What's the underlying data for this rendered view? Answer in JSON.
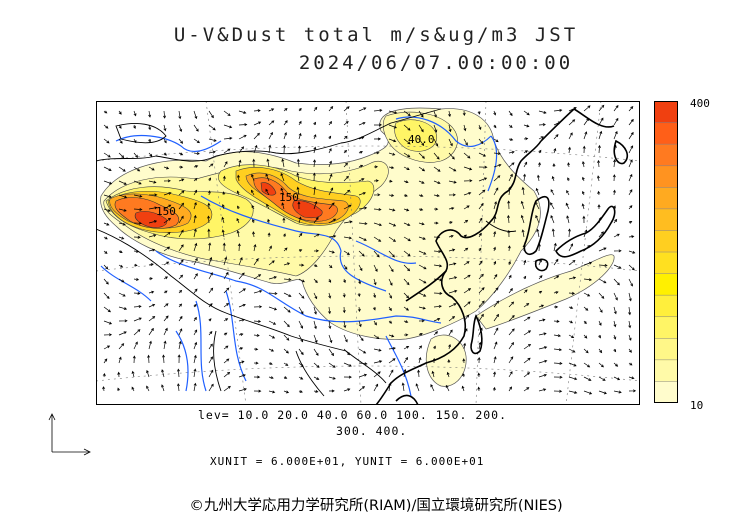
{
  "title": {
    "line1": "U-V&Dust total m/s&ug/m3 JST",
    "line2": "2024/06/07.00:00:00"
  },
  "colorbar": {
    "max_label": "400",
    "min_label": "10",
    "colors": [
      "#fffccc",
      "#fffaa8",
      "#fff788",
      "#fff566",
      "#ffef3c",
      "#fff000",
      "#ffe020",
      "#ffcf20",
      "#ffbd20",
      "#ffaa20",
      "#ff9320",
      "#ff7a20",
      "#ff5f18",
      "#f04010"
    ]
  },
  "levels": {
    "line1": "lev= 10.0 20.0 40.0 60.0 100. 150. 200.",
    "line2": "300. 400."
  },
  "units": "XUNIT = 6.000E+01, YUNIT = 6.000E+01",
  "contour_labels": [
    "150",
    "150",
    "40.0"
  ],
  "copyright": "©九州大学応用力学研究所(RIAM)/国立環境研究所(NIES)"
}
